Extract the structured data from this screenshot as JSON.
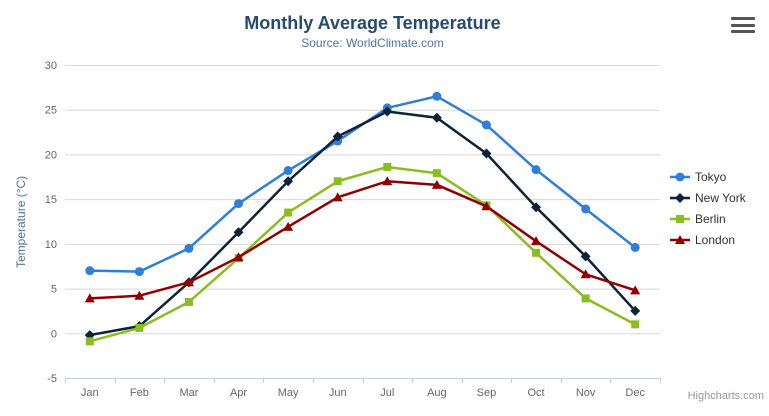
{
  "chart_data": {
    "type": "line",
    "title": "Monthly Average Temperature",
    "subtitle": "Source: WorldClimate.com",
    "xlabel": "",
    "ylabel": "Temperature (°C)",
    "categories": [
      "Jan",
      "Feb",
      "Mar",
      "Apr",
      "May",
      "Jun",
      "Jul",
      "Aug",
      "Sep",
      "Oct",
      "Nov",
      "Dec"
    ],
    "ylim": [
      -5,
      30
    ],
    "yticks": [
      -5,
      0,
      5,
      10,
      15,
      20,
      25,
      30
    ],
    "grid": true,
    "grid_color": "#d8d8d8",
    "axis_color": "#c0d0e0",
    "label_color": "#666666",
    "legend_position": "right",
    "series": [
      {
        "name": "Tokyo",
        "color": "#2f7ed8",
        "marker": "circle",
        "values": [
          7.0,
          6.9,
          9.5,
          14.5,
          18.2,
          21.5,
          25.2,
          26.5,
          23.3,
          18.3,
          13.9,
          9.6
        ]
      },
      {
        "name": "New York",
        "color": "#0d233a",
        "marker": "diamond",
        "values": [
          -0.2,
          0.8,
          5.7,
          11.3,
          17.0,
          22.0,
          24.8,
          24.1,
          20.1,
          14.1,
          8.6,
          2.5
        ]
      },
      {
        "name": "Berlin",
        "color": "#8bbc21",
        "marker": "square",
        "values": [
          -0.9,
          0.6,
          3.5,
          8.4,
          13.5,
          17.0,
          18.6,
          17.9,
          14.3,
          9.0,
          3.9,
          1.0
        ]
      },
      {
        "name": "London",
        "color": "#910000",
        "marker": "triangle",
        "values": [
          3.9,
          4.2,
          5.7,
          8.5,
          11.9,
          15.2,
          17.0,
          16.6,
          14.2,
          10.3,
          6.6,
          4.8
        ]
      }
    ]
  },
  "icons": {
    "context_menu": "hamburger-menu-icon"
  },
  "credits": "Highcharts.com"
}
